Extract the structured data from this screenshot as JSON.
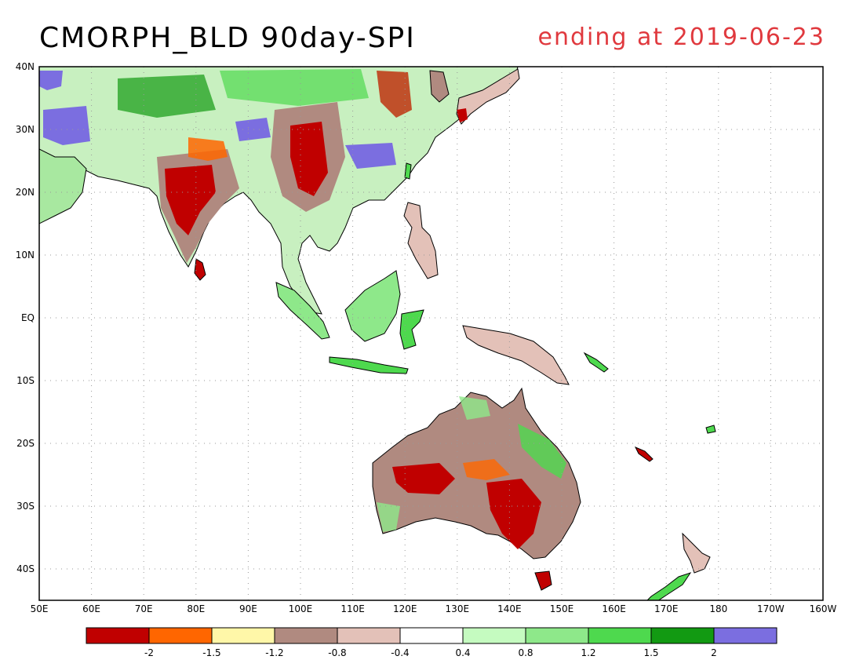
{
  "title": "CMORPH_BLD 90day-SPI",
  "subtitle": "ending at 2019-06-23",
  "lat_labels": [
    "40N",
    "30N",
    "20N",
    "10N",
    "EQ",
    "10S",
    "20S",
    "30S",
    "40S"
  ],
  "lon_labels": [
    "50E",
    "60E",
    "70E",
    "80E",
    "90E",
    "100E",
    "110E",
    "120E",
    "130E",
    "140E",
    "150E",
    "160E",
    "170E",
    "180",
    "170W",
    "160W"
  ],
  "legend": {
    "colors": [
      "#c00000",
      "#ff6600",
      "#fff7a8",
      "#b08a80",
      "#e3c1b8",
      "#ffffff",
      "#c5fbc0",
      "#8ee88a",
      "#4ed94e",
      "#129a12",
      "#7b6ee0"
    ],
    "labels": [
      "-2",
      "-1.5",
      "-1.2",
      "-0.8",
      "-0.4",
      "0.4",
      "0.8",
      "1.2",
      "1.5",
      "2"
    ]
  }
}
